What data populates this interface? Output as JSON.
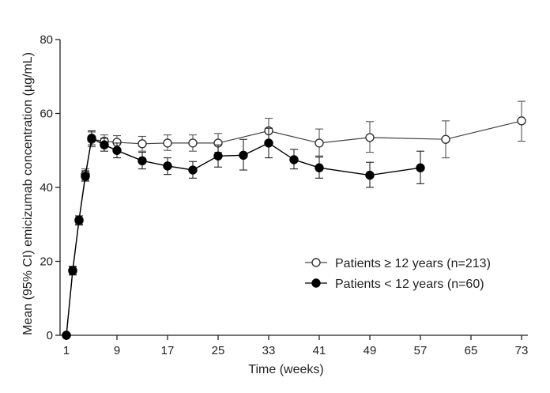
{
  "chart_data": {
    "type": "line",
    "xlabel": "Time (weeks)",
    "ylabel": "Mean (95% CI) emicizumab concentration (µg/mL)",
    "xticks": [
      1,
      9,
      17,
      25,
      33,
      41,
      49,
      57,
      65,
      73
    ],
    "yticks": [
      0,
      20,
      40,
      60,
      80
    ],
    "xlim": [
      0,
      74
    ],
    "ylim": [
      0,
      80
    ],
    "grid": false,
    "legend_position": "bottom-right",
    "series": [
      {
        "name": "Patients ≥ 12 years (n=213)",
        "marker": "open-circle",
        "color": "#444444",
        "points": [
          {
            "x": 1,
            "y": 0,
            "lo": 0,
            "hi": 0
          },
          {
            "x": 2,
            "y": 17.5,
            "lo": 16.5,
            "hi": 18.7
          },
          {
            "x": 3,
            "y": 31,
            "lo": 29.8,
            "hi": 32.3
          },
          {
            "x": 4,
            "y": 43.5,
            "lo": 42,
            "hi": 45
          },
          {
            "x": 5,
            "y": 53,
            "lo": 51,
            "hi": 55
          },
          {
            "x": 7,
            "y": 52.5,
            "lo": 51,
            "hi": 54.2
          },
          {
            "x": 9,
            "y": 52.2,
            "lo": 50.5,
            "hi": 54
          },
          {
            "x": 13,
            "y": 51.8,
            "lo": 49.8,
            "hi": 53.8
          },
          {
            "x": 17,
            "y": 52,
            "lo": 50,
            "hi": 54.2
          },
          {
            "x": 21,
            "y": 52,
            "lo": 49.8,
            "hi": 54.2
          },
          {
            "x": 25,
            "y": 52,
            "lo": 49.5,
            "hi": 54.6
          },
          {
            "x": 33,
            "y": 55.3,
            "lo": 52,
            "hi": 58.7
          },
          {
            "x": 41,
            "y": 52,
            "lo": 48.5,
            "hi": 55.8
          },
          {
            "x": 49,
            "y": 53.5,
            "lo": 49.5,
            "hi": 57.8
          },
          {
            "x": 61,
            "y": 53,
            "lo": 48,
            "hi": 58
          },
          {
            "x": 73,
            "y": 58,
            "lo": 52.5,
            "hi": 63.3
          }
        ]
      },
      {
        "name": "Patients < 12 years (n=60)",
        "marker": "filled-circle",
        "color": "#000000",
        "points": [
          {
            "x": 1,
            "y": 0,
            "lo": 0,
            "hi": 0
          },
          {
            "x": 2,
            "y": 17.5,
            "lo": 16.3,
            "hi": 18.5
          },
          {
            "x": 3,
            "y": 31.2,
            "lo": 30,
            "hi": 32.3
          },
          {
            "x": 4,
            "y": 43,
            "lo": 41.7,
            "hi": 44.5
          },
          {
            "x": 5,
            "y": 53.3,
            "lo": 51.5,
            "hi": 55.3
          },
          {
            "x": 7,
            "y": 51.5,
            "lo": 49.8,
            "hi": 53.3
          },
          {
            "x": 9,
            "y": 50,
            "lo": 48,
            "hi": 52
          },
          {
            "x": 13,
            "y": 47.2,
            "lo": 45,
            "hi": 49.5
          },
          {
            "x": 17,
            "y": 45.8,
            "lo": 43.5,
            "hi": 48
          },
          {
            "x": 21,
            "y": 44.7,
            "lo": 42.5,
            "hi": 47
          },
          {
            "x": 25,
            "y": 48.5,
            "lo": 45.5,
            "hi": 51.5
          },
          {
            "x": 29,
            "y": 48.7,
            "lo": 44.7,
            "hi": 53
          },
          {
            "x": 33,
            "y": 52,
            "lo": 48,
            "hi": 56
          },
          {
            "x": 37,
            "y": 47.5,
            "lo": 45,
            "hi": 50.3
          },
          {
            "x": 41,
            "y": 45.3,
            "lo": 42.5,
            "hi": 48.2
          },
          {
            "x": 49,
            "y": 43.3,
            "lo": 40,
            "hi": 46.8
          },
          {
            "x": 57,
            "y": 45.3,
            "lo": 41,
            "hi": 49.8
          }
        ]
      }
    ]
  }
}
